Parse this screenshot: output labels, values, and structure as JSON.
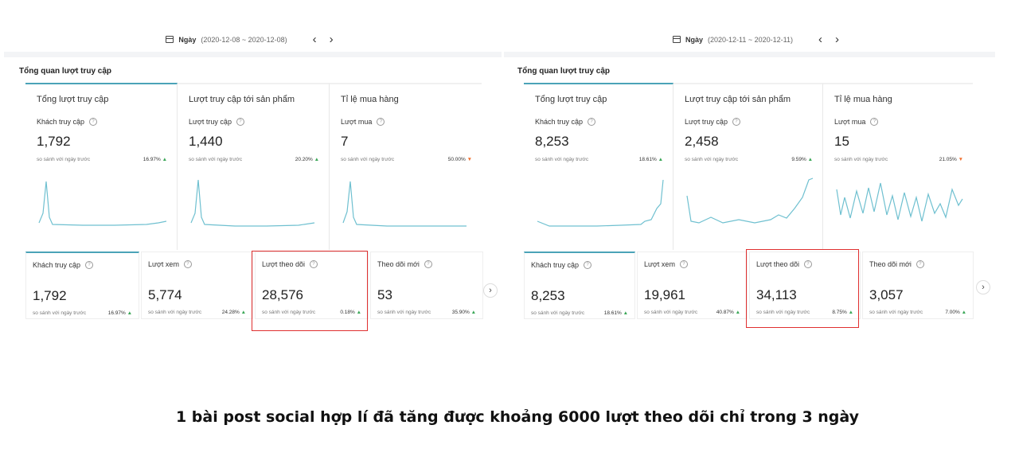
{
  "left": {
    "date_mode": "Ngày",
    "date_range": "(2020-12-08 ~ 2020-12-08)",
    "prev": "‹",
    "next": "›",
    "section_title": "Tổng quan lượt truy cập",
    "metrics": [
      {
        "title": "Tổng lượt truy cập",
        "sub": "Khách truy cập",
        "value": "1,792",
        "cmp": "so sánh với ngày trước",
        "pct": "16.97%",
        "trend": "▲"
      },
      {
        "title": "Lượt truy cập tới sản phẩm",
        "sub": "Lượt truy cập",
        "value": "1,440",
        "cmp": "so sánh với ngày trước",
        "pct": "20.20%",
        "trend": "▲"
      },
      {
        "title": "Tỉ lệ mua hàng",
        "sub": "Lượt mua",
        "value": "7",
        "cmp": "so sánh với ngày trước",
        "pct": "50.00%",
        "trend": "▼"
      }
    ],
    "kpis": [
      {
        "title": "Khách truy cập",
        "value": "1,792",
        "cmp": "so sánh với ngày trước",
        "pct": "16.97%",
        "trend": "▲"
      },
      {
        "title": "Lượt xem",
        "value": "5,774",
        "cmp": "so sánh với ngày trước",
        "pct": "24.28%",
        "trend": "▲"
      },
      {
        "title": "Lượt theo dõi",
        "value": "28,576",
        "cmp": "so sánh với ngày trước",
        "pct": "0.18%",
        "trend": "▲"
      },
      {
        "title": "Theo dõi mới",
        "value": "53",
        "cmp": "so sánh với ngày trước",
        "pct": "35.90%",
        "trend": "▲"
      }
    ],
    "scroll_next": "›"
  },
  "right": {
    "date_mode": "Ngày",
    "date_range": "(2020-12-11 ~ 2020-12-11)",
    "prev": "‹",
    "next": "›",
    "section_title": "Tổng quan lượt truy cập",
    "metrics": [
      {
        "title": "Tổng lượt truy cập",
        "sub": "Khách truy cập",
        "value": "8,253",
        "cmp": "so sánh với ngày trước",
        "pct": "18.61%",
        "trend": "▲"
      },
      {
        "title": "Lượt truy cập tới sản phẩm",
        "sub": "Lượt truy cập",
        "value": "2,458",
        "cmp": "so sánh với ngày trước",
        "pct": "9.59%",
        "trend": "▲"
      },
      {
        "title": "Tỉ lệ mua hàng",
        "sub": "Lượt mua",
        "value": "15",
        "cmp": "so sánh với ngày trước",
        "pct": "21.05%",
        "trend": "▼"
      }
    ],
    "kpis": [
      {
        "title": "Khách truy cập",
        "value": "8,253",
        "cmp": "so sánh với ngày trước",
        "pct": "18.61%",
        "trend": "▲"
      },
      {
        "title": "Lượt xem",
        "value": "19,961",
        "cmp": "so sánh với ngày trước",
        "pct": "40.87%",
        "trend": "▲"
      },
      {
        "title": "Lượt theo dõi",
        "value": "34,113",
        "cmp": "so sánh với ngày trước",
        "pct": "8.75%",
        "trend": "▲"
      },
      {
        "title": "Theo dõi mới",
        "value": "3,057",
        "cmp": "so sánh với ngày trước",
        "pct": "7.00%",
        "trend": "▲"
      }
    ],
    "scroll_next": "›"
  },
  "caption": "1 bài post social hợp lí đã tăng được khoảng 6000 lượt theo dõi chỉ trong 3 ngày",
  "colors": {
    "accent": "#4ba3b8",
    "up": "#3aa757",
    "down": "#f07030",
    "highlight": "#e03030"
  }
}
